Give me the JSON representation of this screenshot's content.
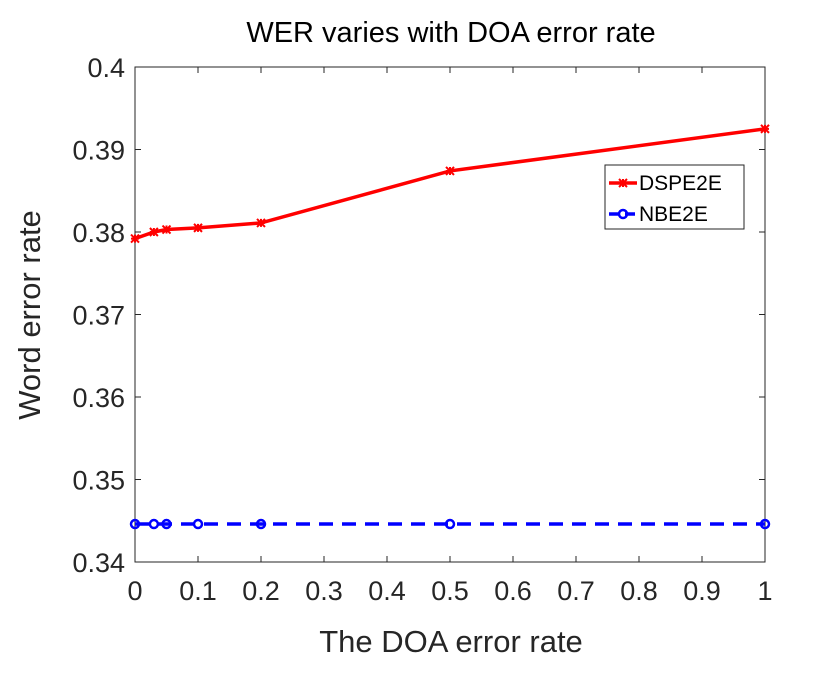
{
  "chart_data": {
    "type": "line",
    "title": "WER varies with DOA error rate",
    "xlabel": "The DOA error rate",
    "ylabel": "Word error rate",
    "xlim": [
      0,
      1
    ],
    "ylim": [
      0.34,
      0.4
    ],
    "xticks": [
      0,
      0.1,
      0.2,
      0.3,
      0.4,
      0.5,
      0.6,
      0.7,
      0.8,
      0.9,
      1
    ],
    "xtick_labels": [
      "0",
      "0.1",
      "0.2",
      "0.3",
      "0.4",
      "0.5",
      "0.6",
      "0.7",
      "0.8",
      "0.9",
      "1"
    ],
    "yticks": [
      0.34,
      0.35,
      0.36,
      0.37,
      0.38,
      0.39,
      0.4
    ],
    "ytick_labels": [
      "0.34",
      "0.35",
      "0.36",
      "0.37",
      "0.38",
      "0.39",
      "0.4"
    ],
    "grid": false,
    "legend_position": "top-right",
    "series": [
      {
        "name": "DSPE2E",
        "color": "#ff0000",
        "line_style": "solid",
        "marker": "asterisk",
        "x": [
          0,
          0.03,
          0.05,
          0.1,
          0.2,
          0.5,
          1
        ],
        "y": [
          0.3792,
          0.38,
          0.3803,
          0.3805,
          0.3811,
          0.3874,
          0.3925
        ]
      },
      {
        "name": "NBE2E",
        "color": "#0000ff",
        "line_style": "dashed",
        "marker": "circle",
        "x": [
          0,
          0.03,
          0.05,
          0.1,
          0.2,
          0.5,
          1
        ],
        "y": [
          0.3446,
          0.3446,
          0.3446,
          0.3446,
          0.3446,
          0.3446,
          0.3446
        ]
      }
    ]
  }
}
